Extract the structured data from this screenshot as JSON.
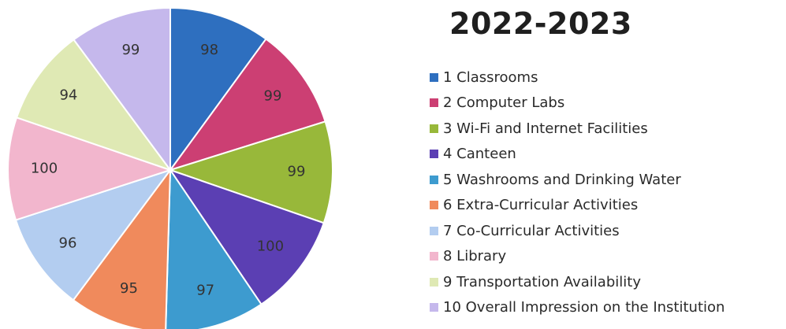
{
  "chart_data": {
    "type": "pie",
    "title": "2022-2023",
    "legend_position": "right",
    "slices": [
      {
        "label": "1 Classrooms",
        "value": 98,
        "color": "#2e6fbf"
      },
      {
        "label": "2 Computer Labs",
        "value": 99,
        "color": "#cc3f73"
      },
      {
        "label": "3 Wi-Fi and Internet Facilities",
        "value": 99,
        "color": "#98b83a"
      },
      {
        "label": "4 Canteen",
        "value": 100,
        "color": "#5b3fb3"
      },
      {
        "label": "5 Washrooms and Drinking Water",
        "value": 97,
        "color": "#3d9bcf"
      },
      {
        "label": "6 Extra-Curricular Activities",
        "value": 95,
        "color": "#f08a5c"
      },
      {
        "label": "7 Co-Curricular Activities",
        "value": 96,
        "color": "#b3cdf0"
      },
      {
        "label": "8 Library",
        "value": 100,
        "color": "#f2b6cd"
      },
      {
        "label": "9 Transportation Availability",
        "value": 94,
        "color": "#dfe9b4"
      },
      {
        "label": "10 Overall Impression on the Institution",
        "value": 99,
        "color": "#c5b8ec"
      }
    ]
  }
}
